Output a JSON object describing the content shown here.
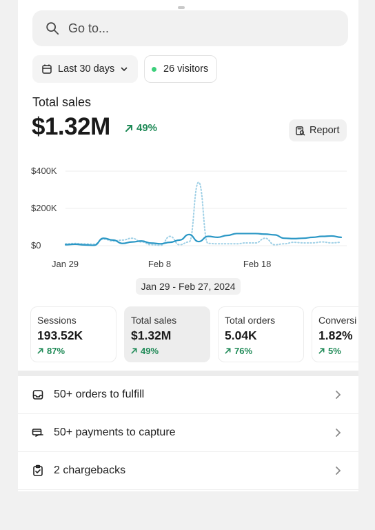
{
  "search": {
    "placeholder": "Go to..."
  },
  "filters": {
    "range_label": "Last 30 days",
    "visitors_label": "26 visitors",
    "live_dot_color": "#3ccf7b"
  },
  "headline": {
    "label": "Total sales",
    "value": "$1.32M",
    "change": "49%",
    "report_label": "Report"
  },
  "chart_data": {
    "type": "line",
    "y_ticks": [
      "$400K",
      "$200K",
      "$0"
    ],
    "ylim": [
      0,
      400000
    ],
    "x_ticks": [
      "Jan 29",
      "Feb 8",
      "Feb 18"
    ],
    "x_tick_days": [
      0,
      10,
      20
    ],
    "grid": true,
    "series": [
      {
        "style": "solid",
        "color": "#2a97c5",
        "x": [
          0,
          1,
          2,
          3,
          4,
          5,
          6,
          7,
          8,
          9,
          10,
          11,
          12,
          13,
          14,
          15,
          16,
          17,
          18,
          19,
          20,
          21,
          22,
          23,
          24,
          25,
          26,
          27,
          28,
          29
        ],
        "y": [
          5000,
          8000,
          4000,
          2000,
          40000,
          30000,
          12000,
          20000,
          25000,
          14000,
          10000,
          18000,
          30000,
          60000,
          22000,
          50000,
          45000,
          55000,
          65000,
          65000,
          65000,
          62000,
          58000,
          40000,
          38000,
          40000,
          45000,
          50000,
          52000,
          45000
        ]
      },
      {
        "style": "dotted",
        "color": "#9fd0e6",
        "x": [
          0,
          1,
          2,
          3,
          4,
          5,
          6,
          7,
          8,
          9,
          10,
          11,
          12,
          13,
          14,
          15,
          16,
          17,
          18,
          19,
          20,
          21,
          22,
          23,
          24,
          25,
          26,
          27,
          28,
          29
        ],
        "y": [
          10000,
          12000,
          10000,
          8000,
          35000,
          25000,
          30000,
          40000,
          20000,
          5000,
          2000,
          50000,
          5000,
          20000,
          340000,
          12000,
          10000,
          10000,
          10000,
          15000,
          15000,
          40000,
          5000,
          10000,
          18000,
          15000,
          15000,
          20000,
          15000,
          18000
        ]
      }
    ]
  },
  "date_range_label": "Jan 29 - Feb 27, 2024",
  "cards": [
    {
      "label": "Sessions",
      "value": "193.52K",
      "change": "87%"
    },
    {
      "label": "Total sales",
      "value": "$1.32M",
      "change": "49%"
    },
    {
      "label": "Total orders",
      "value": "5.04K",
      "change": "76%"
    },
    {
      "label": "Conversi",
      "value": "1.82%",
      "change": "5%"
    }
  ],
  "tasks": [
    {
      "icon": "inbox-icon",
      "label": "50+ orders to fulfill"
    },
    {
      "icon": "payment-icon",
      "label": "50+ payments to capture"
    },
    {
      "icon": "clipboard-icon",
      "label": "2 chargebacks"
    }
  ],
  "colors": {
    "positive": "#1f8a57",
    "chart_primary": "#2a97c5",
    "chart_compare": "#9fd0e6"
  }
}
